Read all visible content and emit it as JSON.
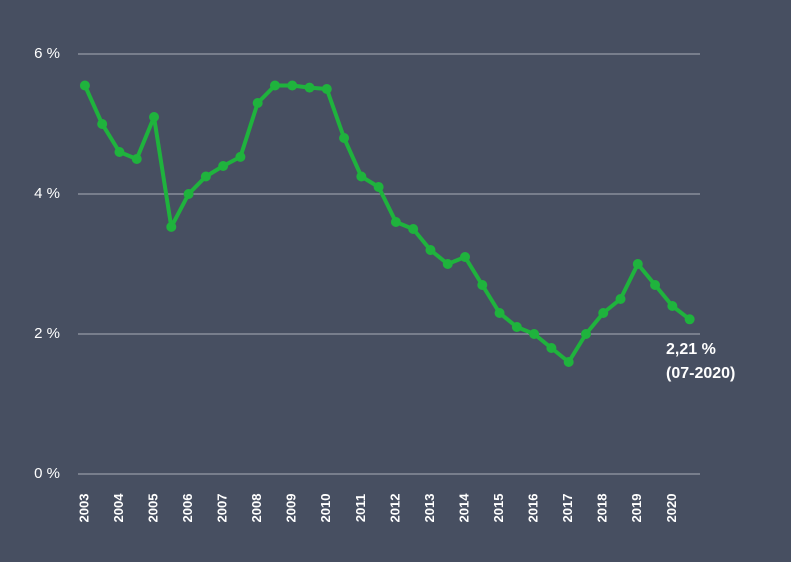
{
  "chart_data": {
    "type": "line",
    "x": [
      2003,
      2003.5,
      2004,
      2004.5,
      2005,
      2005.5,
      2006,
      2006.5,
      2007,
      2007.5,
      2008,
      2008.5,
      2009,
      2009.5,
      2010,
      2010.5,
      2011,
      2011.5,
      2012,
      2012.5,
      2013,
      2013.5,
      2014,
      2014.5,
      2015,
      2015.5,
      2016,
      2016.5,
      2017,
      2017.5,
      2018,
      2018.5,
      2019,
      2019.5,
      2020,
      2020.5
    ],
    "series": [
      {
        "color": "#1fb33d",
        "values": [
          5.55,
          5.0,
          4.6,
          4.5,
          5.1,
          3.53,
          4.0,
          4.25,
          4.4,
          4.53,
          5.3,
          5.55,
          5.55,
          5.52,
          5.5,
          4.8,
          4.25,
          4.1,
          3.6,
          3.5,
          3.2,
          3.0,
          3.1,
          2.7,
          2.3,
          2.1,
          2.0,
          1.8,
          1.6,
          2.0,
          2.3,
          2.5,
          3.0,
          2.7,
          2.4,
          2.21
        ]
      }
    ],
    "xlim": [
      2002.8,
      2020.8
    ],
    "xticks": [
      2003,
      2004,
      2005,
      2006,
      2007,
      2008,
      2009,
      2010,
      2011,
      2012,
      2013,
      2014,
      2015,
      2016,
      2017,
      2018,
      2019,
      2020
    ],
    "ylim": [
      0,
      6
    ],
    "yticks": [
      {
        "value": 0,
        "label": "0 %"
      },
      {
        "value": 2,
        "label": "2 %"
      },
      {
        "value": 4,
        "label": "4 %"
      },
      {
        "value": 6,
        "label": "6 %"
      }
    ],
    "grid": true,
    "annotations": [
      "2,21 %",
      "(07-2020)"
    ]
  }
}
